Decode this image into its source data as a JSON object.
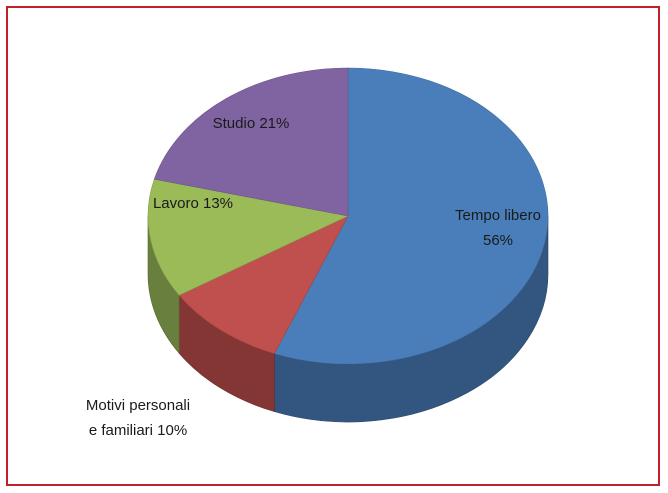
{
  "chart_data": {
    "type": "pie",
    "three_d": true,
    "title": "",
    "slices": [
      {
        "label": "Tempo libero",
        "value_label": "56%",
        "value": 56,
        "color": "#4a7ebb"
      },
      {
        "label": "Motivi personali e familiari",
        "value_label": "10%",
        "value": 10,
        "color": "#c0504d"
      },
      {
        "label": "Lavoro",
        "value_label": "13%",
        "value": 13,
        "color": "#9bbb59"
      },
      {
        "label": "Studio",
        "value_label": "21%",
        "value": 21,
        "color": "#8064a2"
      }
    ],
    "label_lines": [
      [
        "Tempo libero",
        "56%"
      ],
      [
        "Motivi personali",
        "e familiari 10%"
      ],
      [
        "Lavoro 13%"
      ],
      [
        "Studio 21%"
      ]
    ],
    "border_color": "#c0202a"
  }
}
